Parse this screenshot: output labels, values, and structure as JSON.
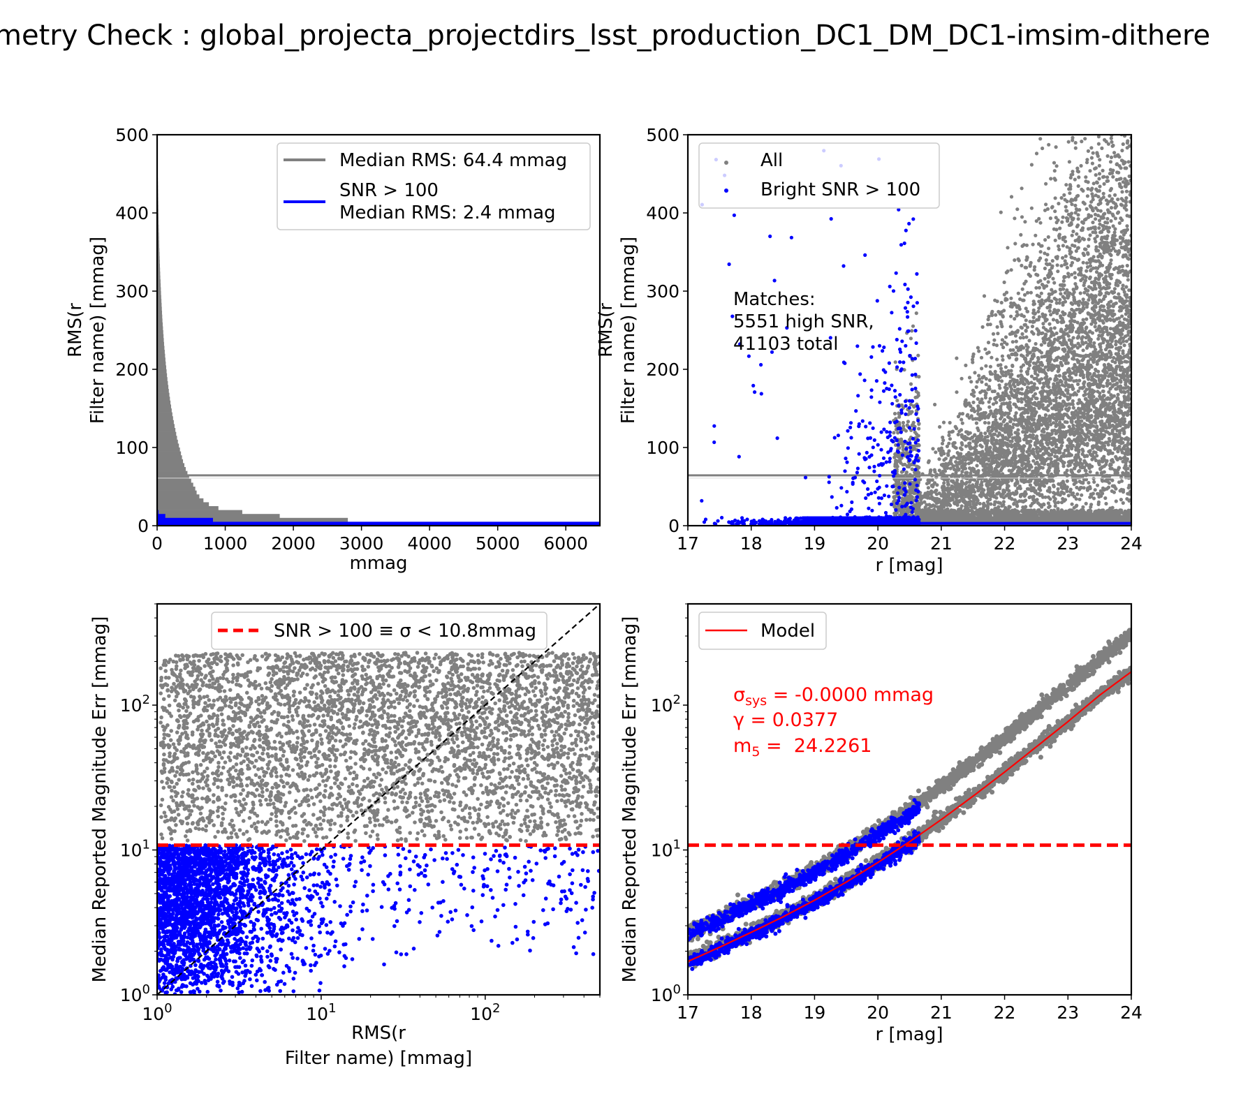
{
  "page_title": "metry Check : global_projecta_projectdirs_lsst_production_DC1_DM_DC1-imsim-dithere",
  "colors": {
    "all": "#808080",
    "bright": "#0000ff",
    "threshold": "#ff0000",
    "model": "#ff0000",
    "diagonal": "#000000"
  },
  "chart_data": [
    {
      "id": "histogram",
      "type": "bar",
      "orientation": "horizontal",
      "title": "",
      "xlabel": "mmag",
      "ylabel": [
        "RMS(r",
        "Filter name) [mmag]"
      ],
      "xlim": [
        0,
        6500
      ],
      "ylim": [
        0,
        500
      ],
      "xticks": [
        "0",
        "1000",
        "2000",
        "3000",
        "4000",
        "5000",
        "6000"
      ],
      "yticks": [
        "0",
        "100",
        "200",
        "300",
        "400",
        "500"
      ],
      "xtick_values": [
        0,
        1000,
        2000,
        3000,
        4000,
        5000,
        6000
      ],
      "ytick_values": [
        0,
        100,
        200,
        300,
        400,
        500
      ],
      "legend_position": "upper right",
      "legend": [
        {
          "label": "Median RMS: 64.4 mmag",
          "color": "#808080"
        },
        {
          "label": "SNR > 100",
          "label2": "Median RMS: 2.4 mmag",
          "color": "#0000ff"
        }
      ],
      "median_all": 64.4,
      "median_bright": 2.4,
      "series": [
        {
          "name": "All",
          "color": "#808080",
          "bin_width": 5,
          "bins": [
            [
              0,
              6500
            ],
            [
              5,
              2800
            ],
            [
              10,
              1800
            ],
            [
              15,
              1250
            ],
            [
              20,
              900
            ],
            [
              25,
              760
            ],
            [
              30,
              680
            ],
            [
              35,
              620
            ],
            [
              40,
              580
            ],
            [
              45,
              560
            ],
            [
              50,
              530
            ],
            [
              55,
              500
            ],
            [
              60,
              470
            ],
            [
              65,
              445
            ],
            [
              70,
              420
            ],
            [
              75,
              400
            ],
            [
              80,
              380
            ],
            [
              85,
              365
            ],
            [
              90,
              350
            ],
            [
              95,
              335
            ],
            [
              100,
              320
            ],
            [
              105,
              305
            ],
            [
              110,
              292
            ],
            [
              115,
              280
            ],
            [
              120,
              268
            ],
            [
              125,
              256
            ],
            [
              130,
              245
            ],
            [
              135,
              234
            ],
            [
              140,
              224
            ],
            [
              145,
              214
            ],
            [
              150,
              205
            ],
            [
              155,
              196
            ],
            [
              160,
              188
            ],
            [
              165,
              180
            ],
            [
              170,
              172
            ],
            [
              175,
              165
            ],
            [
              180,
              158
            ],
            [
              185,
              151
            ],
            [
              190,
              145
            ],
            [
              195,
              139
            ],
            [
              200,
              133
            ],
            [
              205,
              127
            ],
            [
              210,
              122
            ],
            [
              215,
              117
            ],
            [
              220,
              112
            ],
            [
              225,
              107
            ],
            [
              230,
              102
            ],
            [
              235,
              98
            ],
            [
              240,
              94
            ],
            [
              245,
              90
            ],
            [
              250,
              86
            ],
            [
              255,
              82
            ],
            [
              260,
              78
            ],
            [
              265,
              75
            ],
            [
              270,
              72
            ],
            [
              275,
              69
            ],
            [
              280,
              66
            ],
            [
              285,
              63
            ],
            [
              290,
              60
            ],
            [
              295,
              57
            ],
            [
              300,
              55
            ],
            [
              305,
              52
            ],
            [
              310,
              50
            ],
            [
              315,
              47
            ],
            [
              320,
              45
            ],
            [
              325,
              43
            ],
            [
              330,
              41
            ],
            [
              335,
              39
            ],
            [
              340,
              37
            ],
            [
              345,
              35
            ],
            [
              350,
              33
            ],
            [
              355,
              31
            ],
            [
              360,
              30
            ],
            [
              365,
              28
            ],
            [
              370,
              27
            ],
            [
              375,
              25
            ],
            [
              380,
              24
            ],
            [
              385,
              22
            ],
            [
              390,
              21
            ],
            [
              395,
              20
            ],
            [
              400,
              19
            ],
            [
              405,
              18
            ],
            [
              410,
              17
            ],
            [
              415,
              16
            ],
            [
              420,
              15
            ],
            [
              425,
              14
            ],
            [
              430,
              13
            ],
            [
              435,
              12
            ],
            [
              440,
              11
            ],
            [
              445,
              10
            ],
            [
              450,
              9
            ],
            [
              455,
              9
            ],
            [
              460,
              8
            ],
            [
              465,
              7
            ],
            [
              470,
              6
            ],
            [
              475,
              5
            ],
            [
              480,
              4
            ],
            [
              485,
              3
            ],
            [
              490,
              2
            ],
            [
              495,
              1
            ]
          ]
        },
        {
          "name": "SNR > 100",
          "color": "#0000ff",
          "bin_width": 5,
          "bins": [
            [
              0,
              6500
            ],
            [
              5,
              820
            ],
            [
              10,
              120
            ],
            [
              15,
              20
            ]
          ]
        }
      ]
    },
    {
      "id": "rms-vs-mag",
      "type": "scatter",
      "title": "",
      "xlabel": "r [mag]",
      "ylabel": [
        "RMS(r",
        "Filter name) [mmag]"
      ],
      "xlim": [
        17,
        24
      ],
      "ylim": [
        0,
        500
      ],
      "xticks": [
        "17",
        "18",
        "19",
        "20",
        "21",
        "22",
        "23",
        "24"
      ],
      "yticks": [
        "0",
        "100",
        "200",
        "300",
        "400",
        "500"
      ],
      "xtick_values": [
        17,
        18,
        19,
        20,
        21,
        22,
        23,
        24
      ],
      "ytick_values": [
        0,
        100,
        200,
        300,
        400,
        500
      ],
      "legend_position": "upper left",
      "legend": [
        {
          "label": "All",
          "color": "#808080"
        },
        {
          "label": "Bright SNR > 100",
          "color": "#0000ff"
        }
      ],
      "annotation": [
        "Matches:",
        "5551 high SNR,",
        "41103 total"
      ],
      "counts": {
        "high_snr": 5551,
        "total": 41103
      },
      "median_all": 64.4,
      "series": [
        {
          "name": "All",
          "color": "#808080",
          "n_points": 41103,
          "x_range": [
            17,
            24
          ]
        },
        {
          "name": "Bright SNR > 100",
          "color": "#0000ff",
          "n_points": 5551,
          "x_range": [
            17,
            20.65
          ]
        }
      ]
    },
    {
      "id": "err-vs-rms",
      "type": "scatter",
      "title": "",
      "xlabel": [
        "RMS(r",
        "Filter name) [mmag]"
      ],
      "ylabel": "Median Reported Magnitude Err [mmag]",
      "xscale": "log",
      "yscale": "log",
      "xlim": [
        1,
        500
      ],
      "ylim": [
        1,
        500
      ],
      "xticks": [
        {
          "base": "10",
          "exp": "0"
        },
        {
          "base": "10",
          "exp": "1"
        },
        {
          "base": "10",
          "exp": "2"
        }
      ],
      "yticks": [
        {
          "base": "10",
          "exp": "0"
        },
        {
          "base": "10",
          "exp": "1"
        },
        {
          "base": "10",
          "exp": "2"
        }
      ],
      "xtick_values": [
        1,
        10,
        100
      ],
      "ytick_values": [
        1,
        10,
        100
      ],
      "legend_position": "upper center",
      "legend": [
        {
          "label": "SNR > 100 ≡ σ < 10.8mmag",
          "color": "#ff0000",
          "style": "dashed"
        }
      ],
      "threshold_mmag": 10.8,
      "series": [
        {
          "name": "All",
          "color": "#808080"
        },
        {
          "name": "Bright SNR > 100",
          "color": "#0000ff"
        }
      ]
    },
    {
      "id": "err-vs-mag",
      "type": "scatter",
      "title": "",
      "xlabel": "r [mag]",
      "ylabel": "Median Reported Magnitude Err [mmag]",
      "yscale": "log",
      "xlim": [
        17,
        24
      ],
      "ylim": [
        1,
        500
      ],
      "xticks": [
        "17",
        "18",
        "19",
        "20",
        "21",
        "22",
        "23",
        "24"
      ],
      "yticks": [
        {
          "base": "10",
          "exp": "0"
        },
        {
          "base": "10",
          "exp": "1"
        },
        {
          "base": "10",
          "exp": "2"
        }
      ],
      "xtick_values": [
        17,
        18,
        19,
        20,
        21,
        22,
        23,
        24
      ],
      "ytick_values": [
        1,
        10,
        100
      ],
      "legend_position": "upper left",
      "legend": [
        {
          "label": "Model",
          "color": "#ff0000"
        }
      ],
      "threshold_mmag": 10.8,
      "fit": {
        "sigma_sys": "-0.0000 mmag",
        "gamma": "0.0377",
        "m5": "24.2261"
      },
      "fit_labels": {
        "sigma_sys_sym": "σ",
        "sigma_sys_sub": "sys",
        "sigma_sys_eq": " = ",
        "gamma_prefix": "γ = ",
        "m5_sym": "m",
        "m5_sub": "5",
        "m5_eq": " =  "
      },
      "model": {
        "x": [
          17.0,
          17.5,
          18.0,
          18.5,
          19.0,
          19.5,
          20.0,
          20.5,
          21.0,
          21.5,
          22.0,
          22.5,
          23.0,
          23.5,
          24.0
        ],
        "y": [
          1.7,
          2.13,
          2.7,
          3.45,
          4.5,
          6.0,
          8.2,
          11.4,
          16.2,
          23.5,
          34.5,
          51.5,
          77.0,
          117.0,
          170.0
        ]
      },
      "series": [
        {
          "name": "All",
          "color": "#808080",
          "x_range": [
            17,
            24
          ]
        },
        {
          "name": "Bright SNR > 100",
          "color": "#0000ff",
          "x_range": [
            17,
            20.65
          ]
        }
      ]
    }
  ]
}
